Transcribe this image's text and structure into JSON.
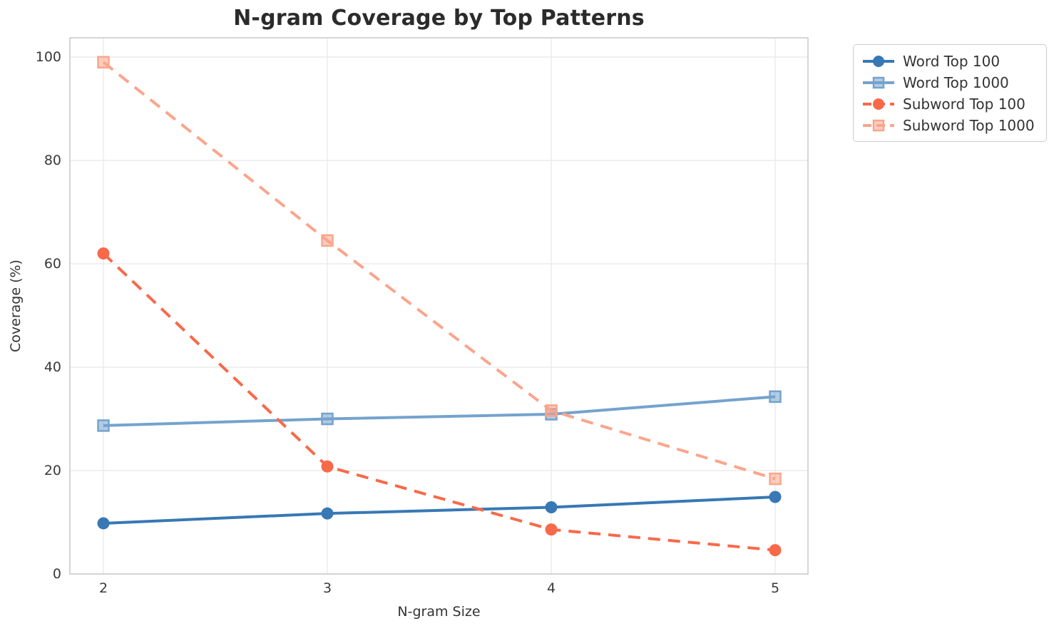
{
  "chart_data": {
    "type": "line",
    "title": "N-gram Coverage by Top Patterns",
    "xlabel": "N-gram Size",
    "ylabel": "Coverage (%)",
    "x": [
      2,
      3,
      4,
      5
    ],
    "x_tick_labels": [
      "2",
      "3",
      "4",
      "5"
    ],
    "y_ticks": [
      0,
      20,
      40,
      60,
      80,
      100
    ],
    "y_tick_labels": [
      "0",
      "20",
      "40",
      "60",
      "80",
      "100"
    ],
    "ylim": [
      0,
      103.7
    ],
    "grid": true,
    "legend_position": "outside-upper-right",
    "series": [
      {
        "name": "Word Top 100",
        "values": [
          9.8,
          11.7,
          12.9,
          14.9
        ],
        "color": "#3878b4",
        "line_style": "solid",
        "marker": "circle"
      },
      {
        "name": "Word Top 1000",
        "values": [
          28.7,
          30.0,
          30.9,
          34.3
        ],
        "color": "#74a3ce",
        "line_style": "solid",
        "marker": "square"
      },
      {
        "name": "Subword Top 100",
        "values": [
          62.0,
          20.8,
          8.6,
          4.6
        ],
        "color": "#f8694a",
        "line_style": "dashed",
        "marker": "circle"
      },
      {
        "name": "Subword Top 1000",
        "values": [
          99.0,
          64.5,
          31.6,
          18.4
        ],
        "color": "#fba58c",
        "line_style": "dashed",
        "marker": "square"
      }
    ],
    "colors": {
      "grid": "#ebebeb",
      "spine": "#cbcbcb",
      "tick_text": "#3a3a3a",
      "title_text": "#2b2b2b"
    }
  }
}
